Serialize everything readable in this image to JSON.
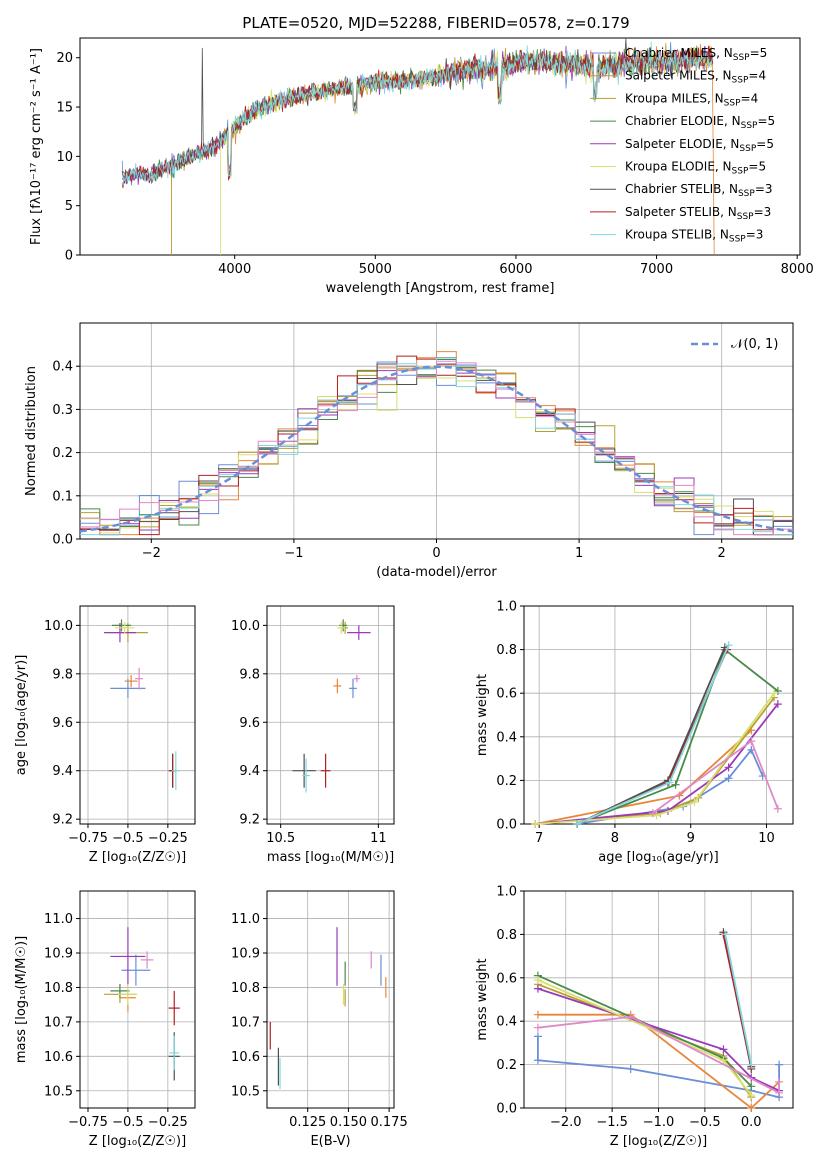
{
  "figure": {
    "title": "PLATE=0520, MJD=52288, FIBERID=0578, z=0.179"
  },
  "chart_data": [
    {
      "id": "spectrum",
      "type": "line",
      "title": "PLATE=0520, MJD=52288, FIBERID=0578, z=0.179",
      "xlabel": "wavelength [Angstrom, rest frame]",
      "ylabel": "Flux [fλ10⁻¹⁷ erg cm⁻² s⁻¹ A⁻¹]",
      "xlim": [
        2900,
        8020
      ],
      "ylim": [
        0,
        22
      ],
      "xticks": [
        4000,
        5000,
        6000,
        7000,
        8000
      ],
      "yticks": [
        0,
        5,
        10,
        15,
        20
      ],
      "grid": false,
      "legend_position": "right",
      "series": [
        {
          "name": "Chabrier MILES, N_SSP=5",
          "label": "Chabrier MILES, N",
          "sub": "SSP",
          "tail": "=5",
          "color": "#6a8fd8"
        },
        {
          "name": "Salpeter MILES, N_SSP=4",
          "label": "Salpeter MILES, N",
          "sub": "SSP",
          "tail": "=4",
          "color": "#e8863a"
        },
        {
          "name": "Kroupa MILES, N_SSP=4",
          "label": "Kroupa MILES, N",
          "sub": "SSP",
          "tail": "=4",
          "color": "#b8a030"
        },
        {
          "name": "Chabrier ELODIE, N_SSP=5",
          "label": "Chabrier ELODIE, N",
          "sub": "SSP",
          "tail": "=5",
          "color": "#4a8a4a"
        },
        {
          "name": "Salpeter ELODIE, N_SSP=5",
          "label": "Salpeter ELODIE, N",
          "sub": "SSP",
          "tail": "=5",
          "color": "#9a3ab8"
        },
        {
          "name": "Kroupa ELODIE, N_SSP=5",
          "label": "Kroupa ELODIE, N",
          "sub": "SSP",
          "tail": "=5",
          "color": "#d8e070"
        },
        {
          "name": "Chabrier STELIB, N_SSP=3",
          "label": "Chabrier STELIB, N",
          "sub": "SSP",
          "tail": "=3",
          "color": "#505050"
        },
        {
          "name": "Salpeter STELIB, N_SSP=3",
          "label": "Salpeter STELIB, N",
          "sub": "SSP",
          "tail": "=3",
          "color": "#b02020"
        },
        {
          "name": "Kroupa STELIB, N_SSP=3",
          "label": "Kroupa STELIB, N",
          "sub": "SSP",
          "tail": "=3",
          "color": "#80d8e0"
        }
      ],
      "anchors": {
        "x": [
          3200,
          3400,
          3550,
          3700,
          3800,
          3900,
          4000,
          4200,
          4400,
          4600,
          4800,
          5000,
          5200,
          5400,
          5600,
          5800,
          6000,
          6200,
          6400,
          6600,
          6800,
          7000,
          7200,
          7400
        ],
        "y": [
          7.8,
          8.3,
          9.0,
          10.0,
          10.5,
          11.5,
          13.0,
          15.0,
          16.0,
          16.5,
          17.0,
          17.6,
          17.6,
          18.0,
          18.6,
          19.0,
          19.4,
          19.6,
          19.4,
          19.0,
          19.4,
          19.6,
          19.8,
          19.8
        ]
      }
    },
    {
      "id": "residuals",
      "type": "line",
      "xlabel": "(data-model)/error",
      "ylabel": "Normed distribution",
      "xlim": [
        -2.5,
        2.5
      ],
      "ylim": [
        0,
        0.5
      ],
      "xticks": [
        -2,
        -1,
        0,
        1,
        2
      ],
      "yticks": [
        0.0,
        0.1,
        0.2,
        0.3,
        0.4
      ],
      "grid": true,
      "legend": "𝒩(0, 1)",
      "legend_position": "top-right",
      "gaussian_color": "#6a8fd8"
    },
    {
      "id": "age_vs_Z",
      "type": "scatter",
      "xlabel": "Z [log₁₀(Z/Z☉)]",
      "ylabel": "age  [log₁₀(age/yr)]",
      "xlim": [
        -0.8,
        -0.08
      ],
      "ylim": [
        9.18,
        10.08
      ],
      "xticks": [
        -0.75,
        -0.5,
        -0.25
      ],
      "yticks": [
        9.2,
        9.4,
        9.6,
        9.8,
        10.0
      ],
      "grid": true,
      "points": [
        {
          "x": -0.5,
          "y": 9.74,
          "dx": 0.22,
          "dy": 0.08,
          "color": "#6a8fd8"
        },
        {
          "x": -0.48,
          "y": 9.77,
          "dx": 0.08,
          "dy": 0.05,
          "color": "#e8863a"
        },
        {
          "x": -0.5,
          "y": 9.97,
          "dx": 0.25,
          "dy": 0.08,
          "color": "#b8a030"
        },
        {
          "x": -0.54,
          "y": 10.0,
          "dx": 0.12,
          "dy": 0.05,
          "color": "#4a8a4a"
        },
        {
          "x": -0.55,
          "y": 9.97,
          "dx": 0.2,
          "dy": 0.08,
          "color": "#9a3ab8"
        },
        {
          "x": -0.52,
          "y": 9.99,
          "dx": 0.12,
          "dy": 0.05,
          "color": "#d8e070"
        },
        {
          "x": -0.22,
          "y": 9.4,
          "dx": 0.05,
          "dy": 0.14,
          "color": "#505050"
        },
        {
          "x": -0.22,
          "y": 9.4,
          "dx": 0.04,
          "dy": 0.14,
          "color": "#b02020"
        },
        {
          "x": -0.2,
          "y": 9.4,
          "dx": 0.05,
          "dy": 0.16,
          "color": "#80d8e0"
        },
        {
          "x": -0.43,
          "y": 9.78,
          "dx": 0.05,
          "dy": 0.09,
          "color": "#e088c8"
        }
      ]
    },
    {
      "id": "age_vs_mass",
      "type": "scatter",
      "xlabel": "mass [log₁₀(M/M☉)]",
      "ylabel": "",
      "xlim": [
        10.43,
        11.08
      ],
      "ylim": [
        9.18,
        10.08
      ],
      "xticks": [
        10.5,
        11.0
      ],
      "yticks": [
        9.2,
        9.4,
        9.6,
        9.8,
        10.0
      ],
      "grid": true,
      "points": [
        {
          "x": 10.87,
          "y": 9.74,
          "dx": 0.04,
          "dy": 0.08,
          "color": "#6a8fd8"
        },
        {
          "x": 10.79,
          "y": 9.75,
          "dx": 0.04,
          "dy": 0.06,
          "color": "#e8863a"
        },
        {
          "x": 10.83,
          "y": 9.99,
          "dx": 0.03,
          "dy": 0.05,
          "color": "#b8a030"
        },
        {
          "x": 10.82,
          "y": 10.0,
          "dx": 0.04,
          "dy": 0.05,
          "color": "#4a8a4a"
        },
        {
          "x": 10.9,
          "y": 9.97,
          "dx": 0.12,
          "dy": 0.06,
          "color": "#9a3ab8"
        },
        {
          "x": 10.81,
          "y": 9.99,
          "dx": 0.04,
          "dy": 0.05,
          "color": "#d8e070"
        },
        {
          "x": 10.62,
          "y": 9.4,
          "dx": 0.12,
          "dy": 0.14,
          "color": "#505050"
        },
        {
          "x": 10.73,
          "y": 9.4,
          "dx": 0.05,
          "dy": 0.14,
          "color": "#b02020"
        },
        {
          "x": 10.63,
          "y": 9.38,
          "dx": 0.04,
          "dy": 0.14,
          "color": "#80d8e0"
        },
        {
          "x": 10.89,
          "y": 9.78,
          "dx": 0.03,
          "dy": 0.03,
          "color": "#e088c8"
        }
      ]
    },
    {
      "id": "mass_weight_vs_age",
      "type": "line",
      "xlabel": "age  [log₁₀(age/yr)]",
      "ylabel": "mass weight",
      "xlim": [
        6.8,
        10.35
      ],
      "ylim": [
        0,
        1.0
      ],
      "xticks": [
        7,
        8,
        9,
        10
      ],
      "yticks": [
        0.0,
        0.2,
        0.4,
        0.6,
        0.8,
        1.0
      ],
      "grid": true,
      "series": [
        {
          "color": "#6a8fd8",
          "x": [
            7.5,
            8.9,
            9.5,
            9.8,
            9.95
          ],
          "y": [
            0.0,
            0.08,
            0.21,
            0.34,
            0.22
          ]
        },
        {
          "color": "#e8863a",
          "x": [
            6.95,
            8.85,
            9.8
          ],
          "y": [
            0.0,
            0.13,
            0.43
          ]
        },
        {
          "color": "#b8a030",
          "x": [
            6.95,
            8.6,
            9.1,
            10.1
          ],
          "y": [
            0.0,
            0.05,
            0.12,
            0.58
          ]
        },
        {
          "color": "#4a8a4a",
          "x": [
            7.5,
            8.8,
            9.45,
            10.15
          ],
          "y": [
            0.0,
            0.18,
            0.8,
            0.61
          ]
        },
        {
          "color": "#9a3ab8",
          "x": [
            6.95,
            8.7,
            9.5,
            10.15
          ],
          "y": [
            0.0,
            0.06,
            0.26,
            0.55
          ]
        },
        {
          "color": "#d8e070",
          "x": [
            6.95,
            8.55,
            9.05,
            10.1
          ],
          "y": [
            0.0,
            0.04,
            0.1,
            0.6
          ]
        },
        {
          "color": "#505050",
          "x": [
            7.5,
            8.7,
            9.45
          ],
          "y": [
            0.0,
            0.2,
            0.81
          ]
        },
        {
          "color": "#b02020",
          "x": [
            7.5,
            8.7,
            9.48
          ],
          "y": [
            0.0,
            0.19,
            0.8
          ]
        },
        {
          "color": "#80d8e0",
          "x": [
            7.5,
            8.72,
            9.5
          ],
          "y": [
            0.0,
            0.19,
            0.82
          ]
        },
        {
          "color": "#e088c8",
          "x": [
            8.5,
            9.8,
            10.15
          ],
          "y": [
            0.05,
            0.38,
            0.07
          ]
        }
      ]
    },
    {
      "id": "mass_vs_Z",
      "type": "scatter",
      "xlabel": "Z [log₁₀(Z/Z☉)]",
      "ylabel": "mass [log₁₀(M/M☉)]",
      "xlim": [
        -0.8,
        -0.08
      ],
      "ylim": [
        10.45,
        11.08
      ],
      "xticks": [
        -0.75,
        -0.5,
        -0.25
      ],
      "yticks": [
        10.5,
        10.6,
        10.7,
        10.8,
        10.9,
        11.0
      ],
      "grid": true,
      "points": [
        {
          "x": -0.45,
          "y": 10.85,
          "dx": 0.18,
          "dy": 0.09,
          "color": "#6a8fd8"
        },
        {
          "x": -0.5,
          "y": 10.77,
          "dx": 0.1,
          "dy": 0.08,
          "color": "#e8863a"
        },
        {
          "x": -0.55,
          "y": 10.78,
          "dx": 0.2,
          "dy": 0.05,
          "color": "#b8a030"
        },
        {
          "x": -0.55,
          "y": 10.79,
          "dx": 0.12,
          "dy": 0.04,
          "color": "#4a8a4a"
        },
        {
          "x": -0.5,
          "y": 10.89,
          "dx": 0.22,
          "dy": 0.17,
          "color": "#9a3ab8"
        },
        {
          "x": -0.5,
          "y": 10.78,
          "dx": 0.12,
          "dy": 0.06,
          "color": "#d8e070"
        },
        {
          "x": -0.21,
          "y": 10.6,
          "dx": 0.07,
          "dy": 0.14,
          "color": "#505050"
        },
        {
          "x": -0.21,
          "y": 10.74,
          "dx": 0.07,
          "dy": 0.1,
          "color": "#b02020"
        },
        {
          "x": -0.21,
          "y": 10.61,
          "dx": 0.06,
          "dy": 0.1,
          "color": "#80d8e0"
        },
        {
          "x": -0.38,
          "y": 10.88,
          "dx": 0.08,
          "dy": 0.05,
          "color": "#e088c8"
        }
      ]
    },
    {
      "id": "mass_vs_ebv",
      "type": "scatter",
      "xlabel": "E(B-V)",
      "ylabel": "",
      "xlim": [
        0.1,
        0.178
      ],
      "ylim": [
        10.45,
        11.08
      ],
      "xticks": [
        0.125,
        0.15,
        0.175
      ],
      "xticklabels": [
        "0.125",
        "0.150",
        "0.175"
      ],
      "yticks": [
        10.5,
        10.6,
        10.7,
        10.8,
        10.9,
        11.0
      ],
      "grid": true,
      "points": [
        {
          "x": 0.17,
          "y": 10.85,
          "dx": 0.0,
          "dy": 0.09,
          "color": "#6a8fd8"
        },
        {
          "x": 0.173,
          "y": 10.8,
          "dx": 0.0,
          "dy": 0.06,
          "color": "#e8863a"
        },
        {
          "x": 0.148,
          "y": 10.77,
          "dx": 0.0,
          "dy": 0.05,
          "color": "#b8a030"
        },
        {
          "x": 0.148,
          "y": 10.84,
          "dx": 0.0,
          "dy": 0.07,
          "color": "#4a8a4a"
        },
        {
          "x": 0.143,
          "y": 10.89,
          "dx": 0.0,
          "dy": 0.17,
          "color": "#9a3ab8"
        },
        {
          "x": 0.147,
          "y": 10.78,
          "dx": 0.0,
          "dy": 0.06,
          "color": "#d8e070"
        },
        {
          "x": 0.107,
          "y": 10.57,
          "dx": 0.0,
          "dy": 0.11,
          "color": "#505050"
        },
        {
          "x": 0.102,
          "y": 10.66,
          "dx": 0.0,
          "dy": 0.08,
          "color": "#b02020"
        },
        {
          "x": 0.108,
          "y": 10.55,
          "dx": 0.0,
          "dy": 0.09,
          "color": "#80d8e0"
        },
        {
          "x": 0.164,
          "y": 10.88,
          "dx": 0.0,
          "dy": 0.05,
          "color": "#e088c8"
        }
      ]
    },
    {
      "id": "mass_weight_vs_Z",
      "type": "line",
      "xlabel": "Z [log₁₀(Z/Z☉)]",
      "ylabel": "mass weight",
      "xlim": [
        -2.45,
        0.45
      ],
      "ylim": [
        0,
        1.0
      ],
      "xticks": [
        -2.0,
        -1.5,
        -1.0,
        -0.5,
        0.0
      ],
      "xticklabels": [
        "−2.0",
        "−1.5",
        "−1.0",
        "−0.5",
        "0.0"
      ],
      "yticks": [
        0.0,
        0.2,
        0.4,
        0.6,
        0.8,
        1.0
      ],
      "grid": true,
      "series": [
        {
          "color": "#6a8fd8",
          "x": [
            -2.3,
            -2.3,
            -1.3,
            0.0,
            0.3,
            0.3
          ],
          "y": [
            0.33,
            0.22,
            0.18,
            0.08,
            0.05,
            0.2
          ]
        },
        {
          "color": "#e8863a",
          "x": [
            -2.3,
            -1.3,
            0.0,
            0.3
          ],
          "y": [
            0.43,
            0.43,
            0.0,
            0.12
          ]
        },
        {
          "color": "#b8a030",
          "x": [
            -2.3,
            -0.3,
            0.0
          ],
          "y": [
            0.57,
            0.24,
            0.05
          ]
        },
        {
          "color": "#4a8a4a",
          "x": [
            -2.3,
            -0.3,
            0.0
          ],
          "y": [
            0.61,
            0.23,
            0.1
          ]
        },
        {
          "color": "#9a3ab8",
          "x": [
            -2.3,
            -0.3,
            0.0,
            0.3
          ],
          "y": [
            0.55,
            0.27,
            0.14,
            0.08
          ]
        },
        {
          "color": "#d8e070",
          "x": [
            -2.3,
            -0.3,
            0.0
          ],
          "y": [
            0.59,
            0.22,
            0.06
          ]
        },
        {
          "color": "#505050",
          "x": [
            -0.3,
            0.0
          ],
          "y": [
            0.81,
            0.18
          ]
        },
        {
          "color": "#b02020",
          "x": [
            -0.3,
            0.0
          ],
          "y": [
            0.8,
            0.19
          ]
        },
        {
          "color": "#80d8e0",
          "x": [
            -0.28,
            0.0
          ],
          "y": [
            0.8,
            0.2
          ]
        },
        {
          "color": "#e088c8",
          "x": [
            -2.3,
            -1.3,
            0.3,
            0.3
          ],
          "y": [
            0.37,
            0.42,
            0.07,
            0.12
          ]
        }
      ]
    }
  ]
}
